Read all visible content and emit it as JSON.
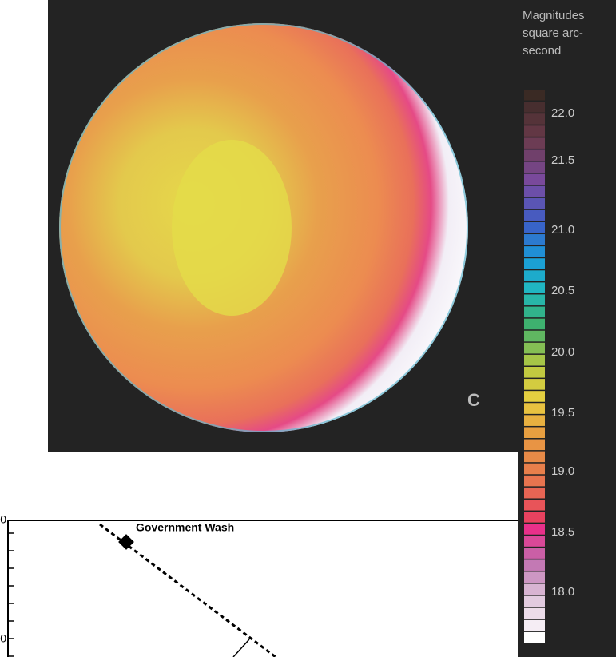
{
  "panel_label": "C",
  "colorbar": {
    "title_lines": [
      "Magnitudes",
      "square arc-",
      "second"
    ],
    "ticks": [
      "22.0",
      "21.5",
      "21.0",
      "20.5",
      "20.0",
      "19.5",
      "19.0",
      "18.5",
      "18.0"
    ]
  },
  "lower_chart": {
    "annotation": "Government Wash",
    "y_tick_labels": [
      "0",
      "0"
    ]
  }
}
